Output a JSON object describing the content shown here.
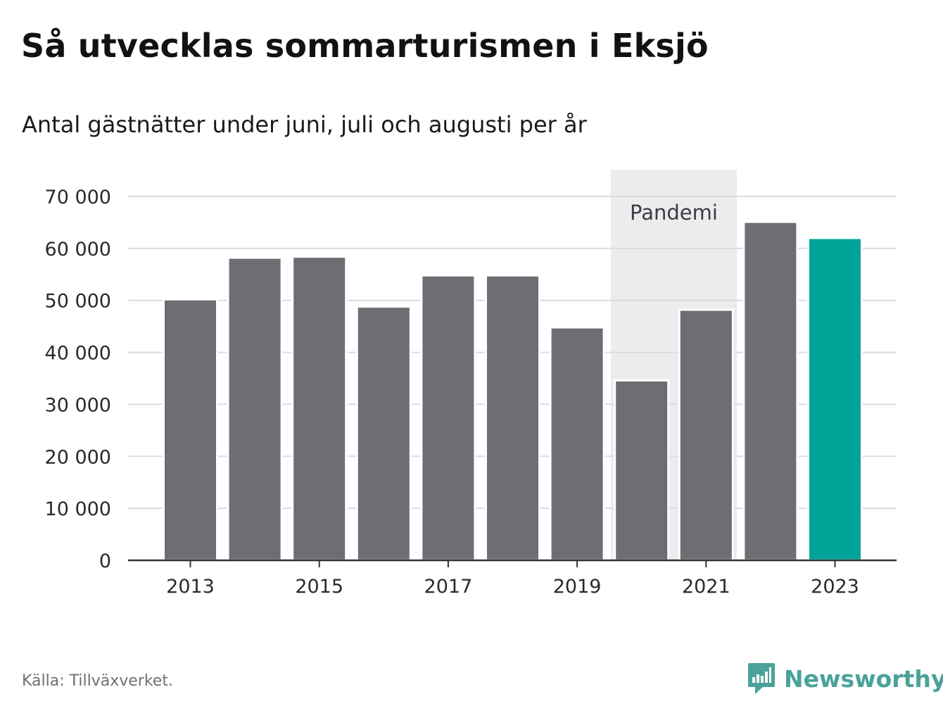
{
  "title": "Så utvecklas sommarturismen i Eksjö",
  "subtitle": "Antal gästnätter under juni, juli och augusti per år",
  "source": "Källa: Tillväxverket.",
  "brand": {
    "name": "Newsworthy",
    "color": "#4aa29a"
  },
  "colors": {
    "bar": "#6e6d74",
    "highlight": "#00a499",
    "band": "#ececec",
    "grid": "#dcdcdc"
  },
  "chart_data": {
    "type": "bar",
    "categories": [
      "2013",
      "2014",
      "2015",
      "2016",
      "2017",
      "2018",
      "2019",
      "2020",
      "2021",
      "2022",
      "2023"
    ],
    "values": [
      50200,
      58200,
      58400,
      48800,
      54800,
      54800,
      44800,
      34600,
      48200,
      65100,
      62000
    ],
    "highlight": "2023",
    "ylim": [
      0,
      70000
    ],
    "y_ticks": [
      0,
      10000,
      20000,
      30000,
      40000,
      50000,
      60000,
      70000
    ],
    "y_tick_labels": [
      "0",
      "10 000",
      "20 000",
      "30 000",
      "40 000",
      "50 000",
      "60 000",
      "70 000"
    ],
    "x_tick_labels": [
      "2013",
      "2015",
      "2017",
      "2019",
      "2021",
      "2023"
    ],
    "annotation": {
      "label": "Pandemi",
      "from": "2020",
      "to": "2021"
    },
    "grid": true,
    "xlabel": "",
    "ylabel": ""
  }
}
